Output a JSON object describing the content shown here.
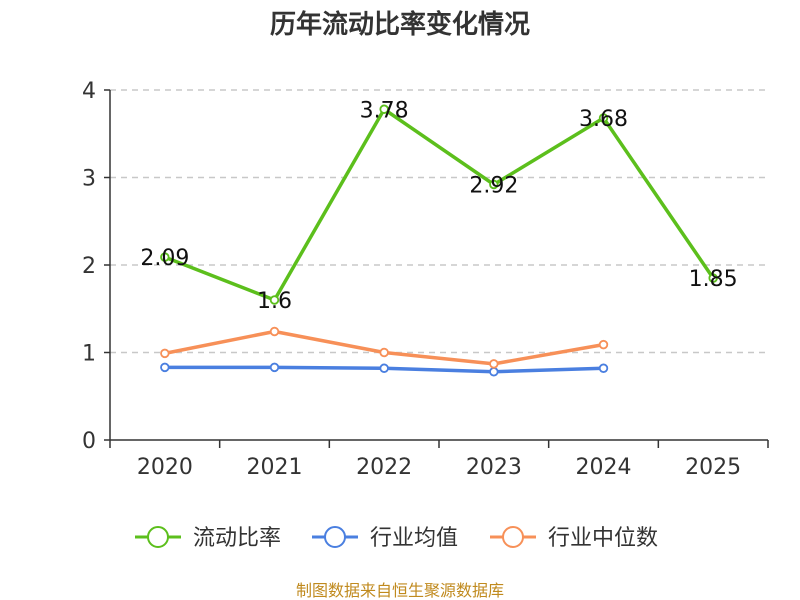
{
  "chart_data": {
    "type": "line",
    "title": "历年流动比率变化情况",
    "categories": [
      "2020",
      "2021",
      "2022",
      "2023",
      "2024",
      "2025"
    ],
    "ylim": [
      0,
      4
    ],
    "yticks": [
      "0",
      "1",
      "2",
      "3",
      "4"
    ],
    "grid": true,
    "legend_position": "bottom",
    "series": [
      {
        "name": "流动比率",
        "color": "#5cbf1c",
        "values": [
          2.09,
          1.6,
          3.78,
          2.92,
          3.68,
          1.85
        ],
        "labels": [
          "2.09",
          "1.6",
          "3.78",
          "2.92",
          "3.68",
          "1.85"
        ]
      },
      {
        "name": "行业均值",
        "color": "#4a7fe0",
        "values": [
          0.83,
          0.83,
          0.82,
          0.78,
          0.82,
          null
        ]
      },
      {
        "name": "行业中位数",
        "color": "#f79058",
        "values": [
          0.99,
          1.24,
          1.0,
          0.87,
          1.09,
          null
        ]
      }
    ],
    "source": "制图数据来自恒生聚源数据库"
  }
}
